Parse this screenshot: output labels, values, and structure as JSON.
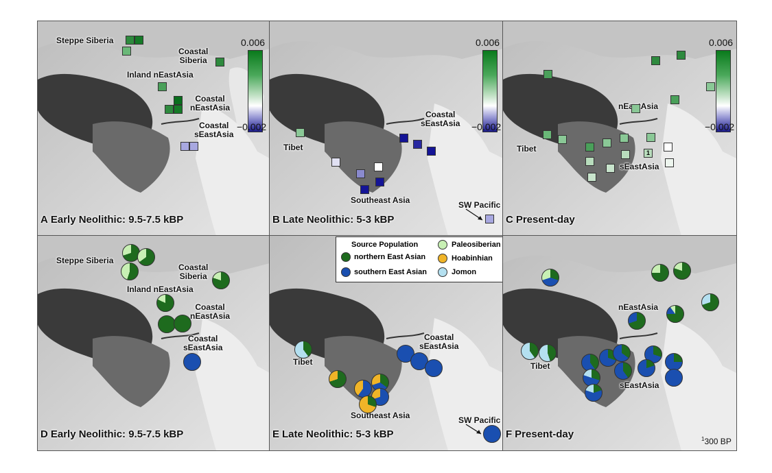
{
  "panels": {
    "A": {
      "letter": "A",
      "title": "Early Neolithic: 9.5-7.5 kBP"
    },
    "B": {
      "letter": "B",
      "title": "Late Neolithic: 5-3 kBP"
    },
    "C": {
      "letter": "C",
      "title": "Present-day"
    },
    "D": {
      "letter": "D",
      "title": "Early Neolithic: 9.5-7.5 kBP"
    },
    "E": {
      "letter": "E",
      "title": "Late Neolithic: 5-3 kBP"
    },
    "F": {
      "letter": "F",
      "title": "Present-day"
    }
  },
  "regions": {
    "steppe_siberia": "Steppe Siberia",
    "coastal_siberia_1": "Coastal",
    "coastal_siberia_2": "Siberia",
    "inland_neastasia": "Inland nEastAsia",
    "coastal_neastasia_1": "Coastal",
    "coastal_neastasia_2": "nEastAsia",
    "coastal_seastasia_1": "Coastal",
    "coastal_seastasia_2": "sEastAsia",
    "tibet": "Tibet",
    "southeast_asia": "Southeast Asia",
    "sw_pacific": "SW Pacific",
    "neastasia": "nEastAsia",
    "seastasia": "sEastAsia"
  },
  "colorbar": {
    "max": "0.006",
    "min": "−0.002"
  },
  "square_marker_label": "1",
  "legend": {
    "title": "Source Population",
    "items": [
      {
        "label": "northern East Asian",
        "color": "#1e6b1e"
      },
      {
        "label": "southern East Asian",
        "color": "#1a4fb0"
      },
      {
        "label": "Paleosiberian",
        "color": "#c8f0b4"
      },
      {
        "label": "Hoabinhian",
        "color": "#f0b428"
      },
      {
        "label": "Jomon",
        "color": "#b4e0f0"
      }
    ]
  },
  "scale_note_sup": "1",
  "scale_note": "300 BP",
  "colors": {
    "northern": "#1e6b1e",
    "southern": "#1a4fb0",
    "paleosiberian": "#c8f0b4",
    "hoabinhian": "#f0b428",
    "jomon": "#b4e0f0"
  }
}
